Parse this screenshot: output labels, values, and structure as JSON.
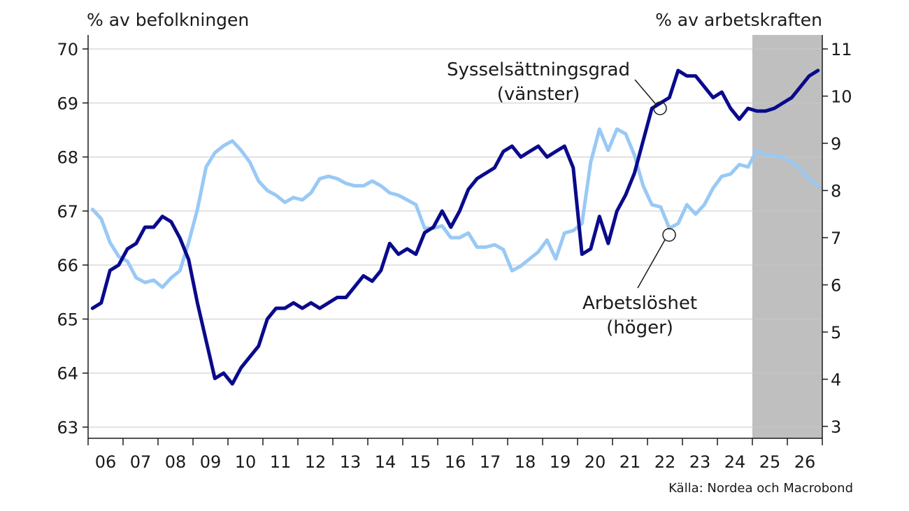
{
  "header": {
    "left_axis_unit": "% av befolkningen",
    "right_axis_unit": "% av arbetskraften"
  },
  "footer": {
    "source": "Källa: Nordea och Macrobond"
  },
  "chart_data": {
    "type": "line",
    "title": "",
    "x_tick_labels": [
      "06",
      "07",
      "08",
      "09",
      "10",
      "11",
      "12",
      "13",
      "14",
      "15",
      "16",
      "17",
      "18",
      "19",
      "20",
      "21",
      "22",
      "23",
      "24",
      "25",
      "26"
    ],
    "xlim": [
      2006.0,
      2027.0
    ],
    "left_axis": {
      "ylim": [
        63,
        70
      ],
      "ticks": [
        63,
        64,
        65,
        66,
        67,
        68,
        69,
        70
      ],
      "label": "% av befolkningen"
    },
    "right_axis": {
      "ylim": [
        3,
        11
      ],
      "ticks": [
        3,
        4,
        5,
        6,
        7,
        8,
        9,
        10,
        11
      ],
      "label": "% av arbetskraften"
    },
    "forecast_shading": {
      "from": 2025.0,
      "to": 2027.0,
      "color": "#bfbfbf"
    },
    "grid": "horizontal",
    "series": [
      {
        "name": "Sysselsättningsgrad (vänster)",
        "axis": "left",
        "color": "#0a0a8c",
        "x": [
          2006.125,
          2006.375,
          2006.625,
          2006.875,
          2007.125,
          2007.375,
          2007.625,
          2007.875,
          2008.125,
          2008.375,
          2008.625,
          2008.875,
          2009.125,
          2009.375,
          2009.625,
          2009.875,
          2010.125,
          2010.375,
          2010.625,
          2010.875,
          2011.125,
          2011.375,
          2011.625,
          2011.875,
          2012.125,
          2012.375,
          2012.625,
          2012.875,
          2013.125,
          2013.375,
          2013.625,
          2013.875,
          2014.125,
          2014.375,
          2014.625,
          2014.875,
          2015.125,
          2015.375,
          2015.625,
          2015.875,
          2016.125,
          2016.375,
          2016.625,
          2016.875,
          2017.125,
          2017.375,
          2017.625,
          2017.875,
          2018.125,
          2018.375,
          2018.625,
          2018.875,
          2019.125,
          2019.375,
          2019.625,
          2019.875,
          2020.125,
          2020.375,
          2020.625,
          2020.875,
          2021.125,
          2021.375,
          2021.625,
          2021.875,
          2022.125,
          2022.375,
          2022.625,
          2022.875,
          2023.125,
          2023.375,
          2023.625,
          2023.875,
          2024.125,
          2024.375,
          2024.625,
          2024.875,
          2025.125,
          2025.375,
          2025.625,
          2025.875,
          2026.125,
          2026.375,
          2026.625,
          2026.875
        ],
        "values": [
          65.2,
          65.3,
          65.9,
          66.0,
          66.3,
          66.4,
          66.7,
          66.7,
          66.9,
          66.8,
          66.5,
          66.1,
          65.3,
          64.6,
          63.9,
          64.0,
          63.8,
          64.1,
          64.3,
          64.5,
          65.0,
          65.2,
          65.2,
          65.3,
          65.2,
          65.3,
          65.2,
          65.3,
          65.4,
          65.4,
          65.6,
          65.8,
          65.7,
          65.9,
          66.4,
          66.2,
          66.3,
          66.2,
          66.6,
          66.7,
          67.0,
          66.7,
          67.0,
          67.4,
          67.6,
          67.7,
          67.8,
          68.1,
          68.2,
          68.0,
          68.1,
          68.2,
          68.0,
          68.1,
          68.2,
          67.8,
          66.2,
          66.3,
          66.9,
          66.4,
          67.0,
          67.3,
          67.7,
          68.3,
          68.9,
          69.0,
          69.1,
          69.6,
          69.5,
          69.5,
          69.3,
          69.1,
          69.2,
          68.9,
          68.7,
          68.9,
          68.85,
          68.85,
          68.9,
          69.0,
          69.1,
          69.3,
          69.5,
          69.6
        ]
      },
      {
        "name": "Arbetslöshet (höger)",
        "axis": "right",
        "color": "#99c9f5",
        "x": [
          2006.125,
          2006.375,
          2006.625,
          2006.875,
          2007.125,
          2007.375,
          2007.625,
          2007.875,
          2008.125,
          2008.375,
          2008.625,
          2008.875,
          2009.125,
          2009.375,
          2009.625,
          2009.875,
          2010.125,
          2010.375,
          2010.625,
          2010.875,
          2011.125,
          2011.375,
          2011.625,
          2011.875,
          2012.125,
          2012.375,
          2012.625,
          2012.875,
          2013.125,
          2013.375,
          2013.625,
          2013.875,
          2014.125,
          2014.375,
          2014.625,
          2014.875,
          2015.125,
          2015.375,
          2015.625,
          2015.875,
          2016.125,
          2016.375,
          2016.625,
          2016.875,
          2017.125,
          2017.375,
          2017.625,
          2017.875,
          2018.125,
          2018.375,
          2018.625,
          2018.875,
          2019.125,
          2019.375,
          2019.625,
          2019.875,
          2020.125,
          2020.375,
          2020.625,
          2020.875,
          2021.125,
          2021.375,
          2021.625,
          2021.875,
          2022.125,
          2022.375,
          2022.625,
          2022.875,
          2023.125,
          2023.375,
          2023.625,
          2023.875,
          2024.125,
          2024.375,
          2024.625,
          2024.875,
          2025.125,
          2025.375,
          2025.625,
          2025.875,
          2026.125,
          2026.375,
          2026.625,
          2026.875
        ],
        "values": [
          7.6,
          7.4,
          6.9,
          6.6,
          6.5,
          6.15,
          6.05,
          6.1,
          5.95,
          6.15,
          6.3,
          6.9,
          7.6,
          8.5,
          8.8,
          8.95,
          9.05,
          8.85,
          8.6,
          8.2,
          8.0,
          7.9,
          7.75,
          7.85,
          7.8,
          7.95,
          8.25,
          8.3,
          8.25,
          8.15,
          8.1,
          8.1,
          8.2,
          8.1,
          7.95,
          7.9,
          7.8,
          7.7,
          7.2,
          7.2,
          7.25,
          7.0,
          7.0,
          7.1,
          6.8,
          6.8,
          6.85,
          6.75,
          6.3,
          6.4,
          6.55,
          6.7,
          6.95,
          6.55,
          7.1,
          7.15,
          7.3,
          8.6,
          9.3,
          8.85,
          9.3,
          9.2,
          8.75,
          8.1,
          7.7,
          7.65,
          7.2,
          7.3,
          7.7,
          7.5,
          7.7,
          8.05,
          8.3,
          8.35,
          8.55,
          8.5,
          8.85,
          8.75,
          8.75,
          8.7,
          8.6,
          8.45,
          8.25,
          8.1
        ]
      }
    ],
    "annotations": [
      {
        "text_lines": [
          "Sysselsättningsgrad",
          "(vänster)"
        ],
        "series": "Sysselsättningsgrad (vänster)"
      },
      {
        "text_lines": [
          "Arbetslöshet",
          "(höger)"
        ],
        "series": "Arbetslöshet (höger)"
      }
    ]
  }
}
